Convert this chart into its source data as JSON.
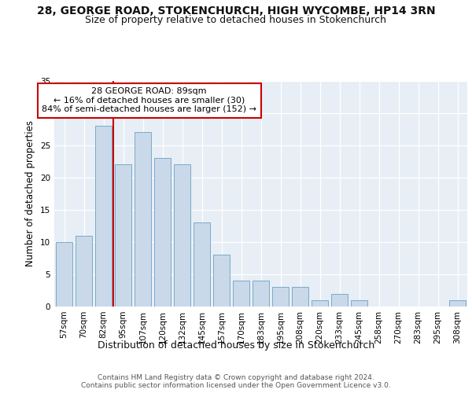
{
  "title1": "28, GEORGE ROAD, STOKENCHURCH, HIGH WYCOMBE, HP14 3RN",
  "title2": "Size of property relative to detached houses in Stokenchurch",
  "xlabel": "Distribution of detached houses by size in Stokenchurch",
  "ylabel": "Number of detached properties",
  "categories": [
    "57sqm",
    "70sqm",
    "82sqm",
    "95sqm",
    "107sqm",
    "120sqm",
    "132sqm",
    "145sqm",
    "157sqm",
    "170sqm",
    "183sqm",
    "195sqm",
    "208sqm",
    "220sqm",
    "233sqm",
    "245sqm",
    "258sqm",
    "270sqm",
    "283sqm",
    "295sqm",
    "308sqm"
  ],
  "values": [
    10,
    11,
    28,
    22,
    27,
    23,
    22,
    13,
    8,
    4,
    4,
    3,
    3,
    1,
    2,
    1,
    0,
    0,
    0,
    0,
    1
  ],
  "bar_color": "#c9d9ea",
  "bar_edge_color": "#7aaac8",
  "vline_color": "#cc0000",
  "annotation_text": "28 GEORGE ROAD: 89sqm\n← 16% of detached houses are smaller (30)\n84% of semi-detached houses are larger (152) →",
  "annotation_box_color": "#ffffff",
  "annotation_box_edge": "#cc0000",
  "ylim": [
    0,
    35
  ],
  "yticks": [
    0,
    5,
    10,
    15,
    20,
    25,
    30,
    35
  ],
  "background_color": "#e8eef5",
  "footer_text": "Contains HM Land Registry data © Crown copyright and database right 2024.\nContains public sector information licensed under the Open Government Licence v3.0.",
  "title1_fontsize": 10,
  "title2_fontsize": 9,
  "xlabel_fontsize": 9,
  "ylabel_fontsize": 8.5,
  "tick_fontsize": 7.5,
  "annotation_fontsize": 8,
  "footer_fontsize": 6.5
}
